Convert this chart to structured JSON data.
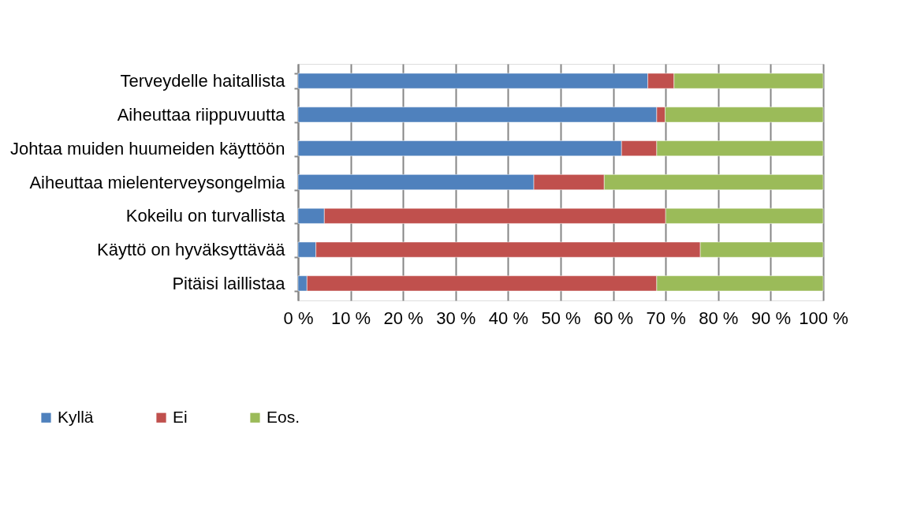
{
  "chart_data": {
    "type": "bar",
    "orientation": "horizontal",
    "stacked": true,
    "categories": [
      "Terveydelle haitallista",
      "Aiheuttaa riippuvuutta",
      "Johtaa muiden huumeiden käyttöön",
      "Aiheuttaa mielenterveysongelmia",
      "Kokeilu on turvallista",
      "Käyttö on hyväksyttävää",
      "Pitäisi laillistaa"
    ],
    "series": [
      {
        "name": "Kyllä",
        "color": "#4f81bd",
        "values": [
          66.6,
          68.3,
          61.6,
          44.9,
          5.0,
          3.4,
          1.7
        ]
      },
      {
        "name": "Ei",
        "color": "#c0504d",
        "values": [
          5.0,
          1.6,
          6.7,
          13.4,
          65.0,
          73.2,
          66.6
        ]
      },
      {
        "name": "Eos.",
        "color": "#9bbb59",
        "values": [
          28.4,
          30.1,
          31.7,
          41.7,
          30.0,
          23.4,
          31.7
        ]
      }
    ],
    "xlim": [
      0,
      100
    ],
    "xticks": [
      {
        "value": 0,
        "label": "0 %"
      },
      {
        "value": 10,
        "label": "10 %"
      },
      {
        "value": 20,
        "label": "20 %"
      },
      {
        "value": 30,
        "label": "30 %"
      },
      {
        "value": 40,
        "label": "40 %"
      },
      {
        "value": 50,
        "label": "50 %"
      },
      {
        "value": 60,
        "label": "60 %"
      },
      {
        "value": 70,
        "label": "70 %"
      },
      {
        "value": 80,
        "label": "80 %"
      },
      {
        "value": 90,
        "label": "90 %"
      },
      {
        "value": 100,
        "label": "100 %"
      }
    ],
    "grid": "x",
    "legend": "bottom"
  }
}
